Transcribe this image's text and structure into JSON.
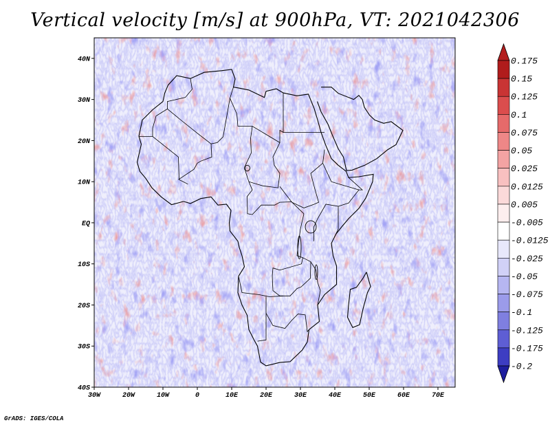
{
  "title": "Vertical velocity [m/s] at 900hPa, VT: 2021042306",
  "credit": "GrADS: IGES/COLA",
  "map": {
    "lon_range": [
      -30,
      75
    ],
    "lat_range": [
      -40,
      45
    ],
    "lon_ticks": [
      {
        "value": -30,
        "label": "30W"
      },
      {
        "value": -20,
        "label": "20W"
      },
      {
        "value": -10,
        "label": "10W"
      },
      {
        "value": 0,
        "label": "0"
      },
      {
        "value": 10,
        "label": "10E"
      },
      {
        "value": 20,
        "label": "20E"
      },
      {
        "value": 30,
        "label": "30E"
      },
      {
        "value": 40,
        "label": "40E"
      },
      {
        "value": 50,
        "label": "50E"
      },
      {
        "value": 60,
        "label": "60E"
      },
      {
        "value": 70,
        "label": "70E"
      }
    ],
    "lat_ticks": [
      {
        "value": 40,
        "label": "40N"
      },
      {
        "value": 30,
        "label": "30N"
      },
      {
        "value": 20,
        "label": "20N"
      },
      {
        "value": 10,
        "label": "10N"
      },
      {
        "value": 0,
        "label": "EQ"
      },
      {
        "value": -10,
        "label": "10S"
      },
      {
        "value": -20,
        "label": "20S"
      },
      {
        "value": -30,
        "label": "30S"
      },
      {
        "value": -40,
        "label": "40S"
      }
    ]
  },
  "colorbar": {
    "levels": [
      {
        "label": "0.175",
        "color": "#b01c1c"
      },
      {
        "label": "0.15",
        "color": "#c93434"
      },
      {
        "label": "0.125",
        "color": "#db4d4d"
      },
      {
        "label": "0.1",
        "color": "#e66a6a"
      },
      {
        "label": "0.075",
        "color": "#ee8787"
      },
      {
        "label": "0.05",
        "color": "#f3a3a3"
      },
      {
        "label": "0.025",
        "color": "#f8c0c0"
      },
      {
        "label": "0.0125",
        "color": "#fbd9d9"
      },
      {
        "label": "0.005",
        "color": "#fdeeee"
      },
      {
        "label": "-0.005",
        "color": "#ffffff"
      },
      {
        "label": "-0.0125",
        "color": "#e8e8fb"
      },
      {
        "label": "-0.025",
        "color": "#d1d1f7"
      },
      {
        "label": "-0.05",
        "color": "#b6b6f1"
      },
      {
        "label": "-0.075",
        "color": "#9b9bea"
      },
      {
        "label": "-0.1",
        "color": "#7f7fe0"
      },
      {
        "label": "-0.125",
        "color": "#5e5ed4"
      },
      {
        "label": "-0.175",
        "color": "#3d3dc2"
      },
      {
        "label": "-0.2",
        "color": "#2424a8"
      }
    ],
    "top_color": "#b31e1e",
    "bottom_color": "#1e1e9e"
  },
  "coastline": [
    [
      -17,
      21
    ],
    [
      -16,
      25
    ],
    [
      -13,
      27.5
    ],
    [
      -10,
      29.5
    ],
    [
      -9.5,
      31.5
    ],
    [
      -8.5,
      33.5
    ],
    [
      -6,
      35.8
    ],
    [
      -2,
      35.1
    ],
    [
      2,
      36.6
    ],
    [
      7,
      37
    ],
    [
      10,
      37.3
    ],
    [
      11,
      35
    ],
    [
      10.5,
      33
    ],
    [
      12,
      32.8
    ],
    [
      15,
      32.3
    ],
    [
      19.5,
      30.5
    ],
    [
      20,
      32
    ],
    [
      23,
      32.6
    ],
    [
      25,
      31.6
    ],
    [
      29,
      30.9
    ],
    [
      32.3,
      31.3
    ],
    [
      34,
      27.8
    ],
    [
      35,
      25
    ],
    [
      36,
      22
    ],
    [
      37.3,
      19
    ],
    [
      39,
      15.6
    ],
    [
      41,
      14
    ],
    [
      43.3,
      12.5
    ],
    [
      44,
      11
    ],
    [
      47,
      11.2
    ],
    [
      51.2,
      11.8
    ],
    [
      51,
      10
    ],
    [
      49,
      6
    ],
    [
      47,
      3.5
    ],
    [
      44,
      1
    ],
    [
      42,
      -1
    ],
    [
      40.3,
      -2.8
    ],
    [
      39,
      -5
    ],
    [
      39.5,
      -8
    ],
    [
      40.5,
      -10.5
    ],
    [
      40.5,
      -15
    ],
    [
      37,
      -17.5
    ],
    [
      35,
      -20
    ],
    [
      35.5,
      -24
    ],
    [
      32.5,
      -26
    ],
    [
      32,
      -29
    ],
    [
      30.5,
      -31
    ],
    [
      27,
      -33.8
    ],
    [
      24,
      -34
    ],
    [
      20,
      -34.8
    ],
    [
      18.4,
      -33.9
    ],
    [
      17.5,
      -30
    ],
    [
      16.5,
      -28.5
    ],
    [
      15,
      -26
    ],
    [
      14.5,
      -22.5
    ],
    [
      13,
      -20
    ],
    [
      11.8,
      -17
    ],
    [
      12,
      -13
    ],
    [
      13.7,
      -10.7
    ],
    [
      13,
      -8
    ],
    [
      12.2,
      -6
    ],
    [
      11.8,
      -4.5
    ],
    [
      9.5,
      -2
    ],
    [
      9.3,
      0
    ],
    [
      9.8,
      3
    ],
    [
      8.5,
      4.5
    ],
    [
      6,
      4.3
    ],
    [
      4,
      6.3
    ],
    [
      1,
      5.9
    ],
    [
      -2,
      4.7
    ],
    [
      -4,
      5.2
    ],
    [
      -7.5,
      4.4
    ],
    [
      -10.5,
      6.3
    ],
    [
      -13.2,
      8.5
    ],
    [
      -15,
      10.8
    ],
    [
      -16.7,
      12.5
    ],
    [
      -17.5,
      14.7
    ],
    [
      -16.3,
      19.1
    ],
    [
      -17,
      21
    ]
  ],
  "madagascar": [
    [
      49.2,
      -12
    ],
    [
      50.4,
      -15.5
    ],
    [
      49.5,
      -17
    ],
    [
      48.2,
      -21
    ],
    [
      47.2,
      -24.8
    ],
    [
      45.2,
      -25.5
    ],
    [
      43.7,
      -23
    ],
    [
      44,
      -20
    ],
    [
      44.5,
      -16.2
    ],
    [
      46.3,
      -15.7
    ],
    [
      48.2,
      -13.5
    ],
    [
      49.2,
      -12
    ]
  ],
  "arabia": [
    [
      34.9,
      29.5
    ],
    [
      36,
      27
    ],
    [
      38,
      24
    ],
    [
      39.2,
      21.5
    ],
    [
      41,
      18
    ],
    [
      42.5,
      16
    ],
    [
      43.4,
      12.7
    ],
    [
      45,
      12.8
    ],
    [
      48.7,
      14
    ],
    [
      52.2,
      15.6
    ],
    [
      55.4,
      17.8
    ],
    [
      57.8,
      19
    ],
    [
      59.8,
      22.5
    ],
    [
      56.4,
      24.6
    ],
    [
      54.2,
      24.2
    ],
    [
      51.6,
      25
    ],
    [
      50.1,
      26.2
    ],
    [
      48.6,
      28.1
    ],
    [
      48,
      30
    ],
    [
      47,
      31
    ],
    [
      45.5,
      30
    ],
    [
      41,
      31.5
    ],
    [
      39,
      33
    ],
    [
      36,
      33
    ]
  ],
  "borders": [
    [
      [
        -17,
        21
      ],
      [
        -13,
        21
      ],
      [
        -13,
        23
      ],
      [
        -12,
        26
      ],
      [
        -8.7,
        27.7
      ],
      [
        -8.7,
        29.5
      ],
      [
        -3.5,
        30.5
      ],
      [
        -1.5,
        32.5
      ],
      [
        -2,
        35.1
      ]
    ],
    [
      [
        -8.7,
        27.7
      ],
      [
        -4.8,
        25
      ],
      [
        0,
        21.8
      ],
      [
        4,
        19.2
      ],
      [
        5.8,
        19.5
      ],
      [
        7.5,
        20.9
      ],
      [
        9.5,
        30.3
      ],
      [
        10.5,
        33
      ]
    ],
    [
      [
        -13,
        21
      ],
      [
        -5.5,
        16
      ],
      [
        -5.3,
        10.5
      ],
      [
        -2.7,
        9.4
      ]
    ],
    [
      [
        4,
        19.2
      ],
      [
        4.2,
        16
      ],
      [
        1,
        15
      ],
      [
        0,
        14.5
      ],
      [
        -1,
        13
      ],
      [
        -5.5,
        10.5
      ]
    ],
    [
      [
        9.5,
        30.3
      ],
      [
        11.5,
        26.5
      ],
      [
        11.8,
        23.5
      ],
      [
        16,
        23.5
      ],
      [
        24,
        19.5
      ],
      [
        24,
        22.5
      ],
      [
        25,
        22
      ],
      [
        25,
        31.6
      ]
    ],
    [
      [
        16,
        23.5
      ],
      [
        15.5,
        20.5
      ],
      [
        15.7,
        17
      ],
      [
        14,
        14
      ],
      [
        14,
        12.5
      ],
      [
        15,
        10
      ],
      [
        19,
        9
      ],
      [
        23.5,
        8.5
      ],
      [
        24,
        12
      ],
      [
        22.4,
        14
      ],
      [
        22,
        16
      ],
      [
        24,
        19.5
      ]
    ],
    [
      [
        25,
        22
      ],
      [
        37,
        22
      ]
    ],
    [
      [
        24,
        8.8
      ],
      [
        27.5,
        5
      ],
      [
        31,
        3.6
      ],
      [
        34,
        4.5
      ],
      [
        35.3,
        5
      ],
      [
        34.1,
        8.5
      ],
      [
        33,
        12
      ],
      [
        36.5,
        14.5
      ],
      [
        37,
        17.8
      ]
    ],
    [
      [
        15,
        10
      ],
      [
        16,
        8
      ],
      [
        14.5,
        6.4
      ],
      [
        14.6,
        2.2
      ],
      [
        16,
        2
      ],
      [
        18.6,
        4.3
      ],
      [
        22.5,
        4.3
      ],
      [
        24,
        5
      ],
      [
        27.4,
        5.1
      ],
      [
        31,
        2.2
      ]
    ],
    [
      [
        31,
        2.2
      ],
      [
        30,
        -1.5
      ],
      [
        29.5,
        -4.5
      ],
      [
        29,
        -8
      ],
      [
        30.7,
        -8.5
      ],
      [
        33,
        -9.5
      ],
      [
        34.5,
        -11.5
      ],
      [
        35,
        -14.5
      ],
      [
        35.8,
        -16.5
      ],
      [
        35,
        -20
      ]
    ],
    [
      [
        30.7,
        -8.5
      ],
      [
        30.3,
        -10
      ],
      [
        24,
        -11.5
      ],
      [
        22,
        -11
      ],
      [
        21.8,
        -13
      ],
      [
        22,
        -16.5
      ],
      [
        24,
        -17.8
      ],
      [
        27,
        -17.8
      ],
      [
        29,
        -16
      ],
      [
        30.2,
        -15.6
      ],
      [
        32.9,
        -13.5
      ],
      [
        33,
        -9.5
      ]
    ],
    [
      [
        12,
        -13
      ],
      [
        13,
        -17
      ],
      [
        18,
        -17.5
      ],
      [
        21,
        -18
      ],
      [
        25,
        -17.8
      ]
    ],
    [
      [
        20,
        -18
      ],
      [
        20,
        -22
      ],
      [
        20,
        -24.7
      ],
      [
        20,
        -28.5
      ],
      [
        17.5,
        -28.8
      ]
    ],
    [
      [
        20,
        -22
      ],
      [
        22,
        -25
      ],
      [
        25.5,
        -25.7
      ],
      [
        27.5,
        -23.7
      ],
      [
        29.3,
        -22.2
      ],
      [
        31.4,
        -22.4
      ],
      [
        32,
        -26.5
      ],
      [
        32.5,
        -26
      ]
    ],
    [
      [
        33.9,
        -4.5
      ],
      [
        33.9,
        -1
      ],
      [
        35,
        1
      ],
      [
        37.4,
        4.5
      ],
      [
        41,
        4
      ],
      [
        41,
        -1.5
      ],
      [
        40.3,
        -2.8
      ]
    ],
    [
      [
        41,
        4
      ],
      [
        44,
        4.8
      ],
      [
        47,
        8
      ],
      [
        48,
        8
      ],
      [
        44,
        11
      ]
    ],
    [
      [
        36.5,
        14.5
      ],
      [
        39,
        10
      ],
      [
        43,
        9
      ],
      [
        47,
        8
      ]
    ]
  ],
  "lakes": [
    {
      "lon": 33,
      "lat": -1,
      "rx": 1.6,
      "ry": 1.5
    },
    {
      "lon": 29.7,
      "lat": -6,
      "rx": 0.5,
      "ry": 2.8
    },
    {
      "lon": 34.6,
      "lat": -12,
      "rx": 0.4,
      "ry": 1.8
    },
    {
      "lon": 14.5,
      "lat": 13.3,
      "rx": 0.8,
      "ry": 0.7
    }
  ]
}
